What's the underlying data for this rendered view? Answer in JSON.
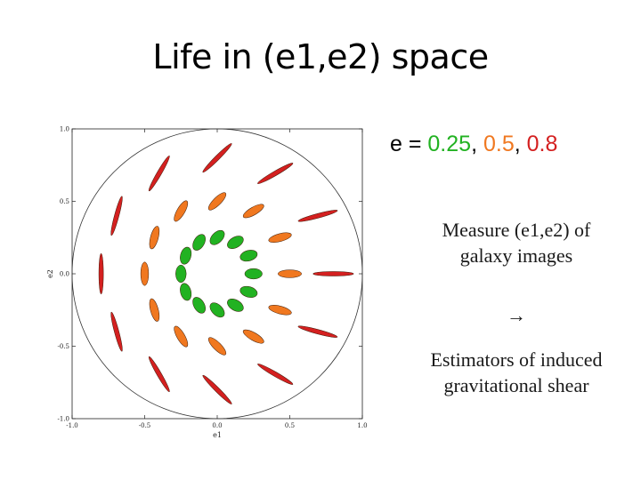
{
  "slide": {
    "title": "Life in (e1,e2) space"
  },
  "legend": {
    "prefix": "e = ",
    "sep1": ", ",
    "sep2": ", ",
    "values": [
      {
        "label": "0.25",
        "color": "#22b222"
      },
      {
        "label": "0.5",
        "color": "#f07820"
      },
      {
        "label": "0.8",
        "color": "#d42020"
      }
    ]
  },
  "measure_text": "Measure (e1,e2) of galaxy images",
  "arrow_text": "→",
  "estimators_text": "Estimators of induced gravitational shear",
  "chart_data": {
    "type": "scatter",
    "xlabel": "e1",
    "ylabel": "e2",
    "xlim": [
      -1.0,
      1.0
    ],
    "ylim": [
      -1.0,
      1.0
    ],
    "xticks": [
      "-1.0",
      "-0.5",
      "0.0",
      "0.5",
      "1.0"
    ],
    "yticks": [
      "1.0",
      "0.5",
      "0.0",
      "-0.5",
      "-1.0"
    ],
    "unit_circle": true,
    "series": [
      {
        "e": 0.25,
        "color": "#22b222",
        "points": [
          [
            0.25,
            0.0
          ],
          [
            0.217,
            0.125
          ],
          [
            0.125,
            0.217
          ],
          [
            0.0,
            0.25
          ],
          [
            -0.125,
            0.217
          ],
          [
            -0.217,
            0.125
          ],
          [
            -0.25,
            0.0
          ],
          [
            -0.217,
            -0.125
          ],
          [
            -0.125,
            -0.217
          ],
          [
            0.0,
            -0.25
          ],
          [
            0.125,
            -0.217
          ],
          [
            0.217,
            -0.125
          ]
        ]
      },
      {
        "e": 0.5,
        "color": "#f07820",
        "points": [
          [
            0.5,
            0.0
          ],
          [
            0.433,
            0.25
          ],
          [
            0.25,
            0.433
          ],
          [
            0.0,
            0.5
          ],
          [
            -0.25,
            0.433
          ],
          [
            -0.433,
            0.25
          ],
          [
            -0.5,
            0.0
          ],
          [
            -0.433,
            -0.25
          ],
          [
            -0.25,
            -0.433
          ],
          [
            0.0,
            -0.5
          ],
          [
            0.25,
            -0.433
          ],
          [
            0.433,
            -0.25
          ]
        ]
      },
      {
        "e": 0.8,
        "color": "#d42020",
        "points": [
          [
            0.8,
            0.0
          ],
          [
            0.693,
            0.4
          ],
          [
            0.4,
            0.693
          ],
          [
            0.0,
            0.8
          ],
          [
            -0.4,
            0.693
          ],
          [
            -0.693,
            0.4
          ],
          [
            -0.8,
            0.0
          ],
          [
            -0.693,
            -0.4
          ],
          [
            -0.4,
            -0.693
          ],
          [
            0.0,
            -0.8
          ],
          [
            0.4,
            -0.693
          ],
          [
            0.693,
            -0.4
          ]
        ]
      }
    ]
  }
}
